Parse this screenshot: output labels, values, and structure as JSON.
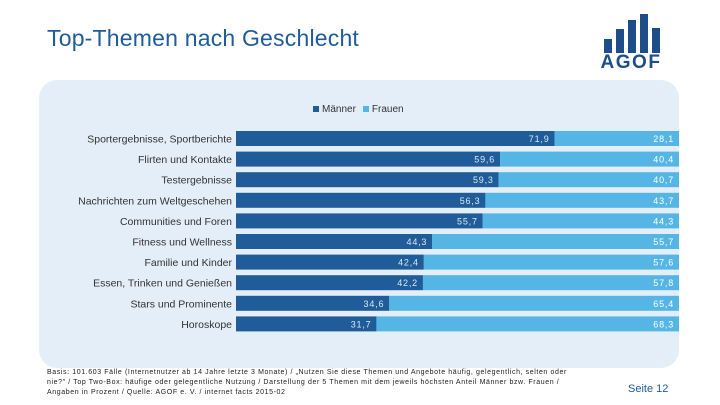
{
  "slide": {
    "title": "Top-Themen nach Geschlecht",
    "logo_text": "AGOF",
    "footnote": "Basis: 101.603 Fälle (Internetnutzer ab 14 Jahre letzte 3 Monate) / „Nutzen Sie diese Themen und Angebote häufig, gelegentlich, selten oder nie?\" / Top Two-Box: häufige oder gelegentliche Nutzung / Darstellung der 5 Themen mit dem jeweils höchsten Anteil Männer bzw. Frauen / Angaben in Prozent / Quelle: AGOF e. V. / internet facts 2015-02",
    "page_label": "Seite 12"
  },
  "colors": {
    "title": "#1f5c99",
    "maenner": "#1f5c99",
    "frauen": "#55b6e6",
    "panel": "#e4eef8"
  },
  "chart_data": {
    "type": "bar",
    "orientation": "horizontal",
    "stacked": true,
    "title": "Top-Themen nach Geschlecht",
    "xlabel": "",
    "ylabel": "",
    "xlim": [
      0,
      100
    ],
    "legend_position": "top-center",
    "categories": [
      "Sportergebnisse, Sportberichte",
      "Flirten und Kontakte",
      "Testergebnisse",
      "Nachrichten zum Weltgeschehen",
      "Communities und Foren",
      "Fitness und Wellness",
      "Familie und Kinder",
      "Essen, Trinken und Genießen",
      "Stars und Prominente",
      "Horoskope"
    ],
    "series": [
      {
        "name": "Männer",
        "values": [
          71.9,
          59.6,
          59.3,
          56.3,
          55.7,
          44.3,
          42.4,
          42.2,
          34.6,
          31.7
        ],
        "labels": [
          "71,9",
          "59,6",
          "59,3",
          "56,3",
          "55,7",
          "44,3",
          "42,4",
          "42,2",
          "34,6",
          "31,7"
        ]
      },
      {
        "name": "Frauen",
        "values": [
          28.1,
          40.4,
          40.7,
          43.7,
          44.3,
          55.7,
          57.6,
          57.8,
          65.4,
          68.3
        ],
        "labels": [
          "28,1",
          "40,4",
          "40,7",
          "43,7",
          "44,3",
          "55,7",
          "57,6",
          "57,8",
          "65,4",
          "68,3"
        ]
      }
    ]
  }
}
